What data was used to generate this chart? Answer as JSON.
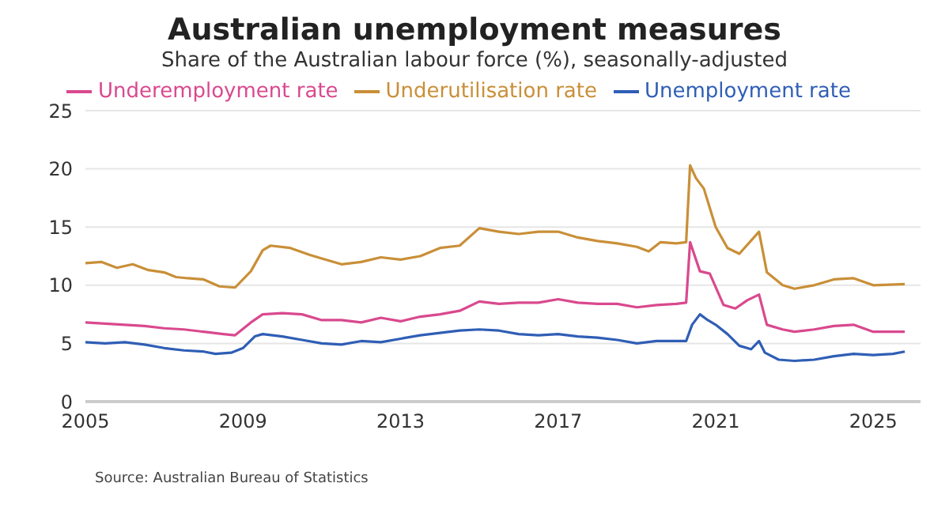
{
  "chart_data": {
    "type": "line",
    "title": "Australian unemployment measures",
    "subtitle": "Share of the Australian labour force (%), seasonally-adjusted",
    "annotations": [
      "Source: Australian Bureau of Statistics"
    ],
    "xlim": [
      2005,
      2026.2
    ],
    "xticks": [
      2005,
      2009,
      2013,
      2017,
      2021,
      2025
    ],
    "ylim": [
      0,
      25
    ],
    "yticks": [
      0,
      5,
      10,
      15,
      20,
      25
    ],
    "grid": "y",
    "legend": "top",
    "marker": "none",
    "line_style": "solid",
    "series": [
      {
        "name": "Unemployment rate",
        "color": "#2f5eb5",
        "x": [
          2005,
          2005.5,
          2006,
          2006.5,
          2007,
          2007.5,
          2008,
          2008.3,
          2008.7,
          2009,
          2009.3,
          2009.5,
          2010,
          2010.5,
          2011,
          2011.5,
          2012,
          2012.5,
          2013,
          2013.5,
          2014,
          2014.5,
          2015,
          2015.5,
          2016,
          2016.5,
          2017,
          2017.5,
          2018,
          2018.5,
          2019,
          2019.5,
          2020,
          2020.25,
          2020.4,
          2020.6,
          2020.8,
          2021,
          2021.3,
          2021.6,
          2021.9,
          2022.1,
          2022.25,
          2022.6,
          2023,
          2023.5,
          2024,
          2024.5,
          2025,
          2025.5,
          2025.8
        ],
        "values": [
          5.1,
          5.0,
          5.1,
          4.9,
          4.6,
          4.4,
          4.3,
          4.1,
          4.2,
          4.6,
          5.6,
          5.8,
          5.6,
          5.3,
          5.0,
          4.9,
          5.2,
          5.1,
          5.4,
          5.7,
          5.9,
          6.1,
          6.2,
          6.1,
          5.8,
          5.7,
          5.8,
          5.6,
          5.5,
          5.3,
          5.0,
          5.2,
          5.2,
          5.2,
          6.6,
          7.5,
          7.0,
          6.6,
          5.8,
          4.8,
          4.5,
          5.2,
          4.2,
          3.6,
          3.5,
          3.6,
          3.9,
          4.1,
          4.0,
          4.1,
          4.3
        ]
      },
      {
        "name": "Underemployment rate",
        "color": "#d9498e",
        "x": [
          2005,
          2005.5,
          2006,
          2006.5,
          2007,
          2007.5,
          2008,
          2008.5,
          2008.8,
          2009.2,
          2009.5,
          2010,
          2010.5,
          2011,
          2011.5,
          2012,
          2012.5,
          2013,
          2013.5,
          2014,
          2014.5,
          2015,
          2015.5,
          2016,
          2016.5,
          2017,
          2017.5,
          2018,
          2018.5,
          2019,
          2019.5,
          2020,
          2020.25,
          2020.35,
          2020.6,
          2020.85,
          2021.2,
          2021.5,
          2021.8,
          2022.1,
          2022.3,
          2022.7,
          2023,
          2023.5,
          2024,
          2024.5,
          2025,
          2025.8
        ],
        "values": [
          6.8,
          6.7,
          6.6,
          6.5,
          6.3,
          6.2,
          6.0,
          5.8,
          5.7,
          6.8,
          7.5,
          7.6,
          7.5,
          7.0,
          7.0,
          6.8,
          7.2,
          6.9,
          7.3,
          7.5,
          7.8,
          8.6,
          8.4,
          8.5,
          8.5,
          8.8,
          8.5,
          8.4,
          8.4,
          8.1,
          8.3,
          8.4,
          8.5,
          13.7,
          11.2,
          11.0,
          8.3,
          8.0,
          8.7,
          9.2,
          6.6,
          6.2,
          6.0,
          6.2,
          6.5,
          6.6,
          6.0,
          6.0
        ]
      },
      {
        "name": "Underutilisation rate",
        "color": "#c98f38",
        "x": [
          2005,
          2005.4,
          2005.8,
          2006.2,
          2006.6,
          2007,
          2007.3,
          2007.6,
          2008,
          2008.4,
          2008.8,
          2009.2,
          2009.5,
          2009.7,
          2010.2,
          2010.7,
          2011,
          2011.5,
          2012,
          2012.5,
          2013,
          2013.5,
          2014,
          2014.5,
          2015,
          2015.5,
          2016,
          2016.5,
          2017,
          2017.5,
          2018,
          2018.5,
          2019,
          2019.3,
          2019.6,
          2020,
          2020.25,
          2020.35,
          2020.5,
          2020.7,
          2021,
          2021.3,
          2021.6,
          2022.1,
          2022.3,
          2022.7,
          2023,
          2023.5,
          2024,
          2024.5,
          2025,
          2025.8
        ],
        "values": [
          11.9,
          12.0,
          11.5,
          11.8,
          11.3,
          11.1,
          10.7,
          10.6,
          10.5,
          9.9,
          9.8,
          11.2,
          13.0,
          13.4,
          13.2,
          12.6,
          12.3,
          11.8,
          12.0,
          12.4,
          12.2,
          12.5,
          13.2,
          13.4,
          14.9,
          14.6,
          14.4,
          14.6,
          14.6,
          14.1,
          13.8,
          13.6,
          13.3,
          12.9,
          13.7,
          13.6,
          13.7,
          20.3,
          19.2,
          18.3,
          15.0,
          13.2,
          12.7,
          14.6,
          11.1,
          10.0,
          9.7,
          10.0,
          10.5,
          10.6,
          10.0,
          10.1
        ]
      }
    ]
  }
}
